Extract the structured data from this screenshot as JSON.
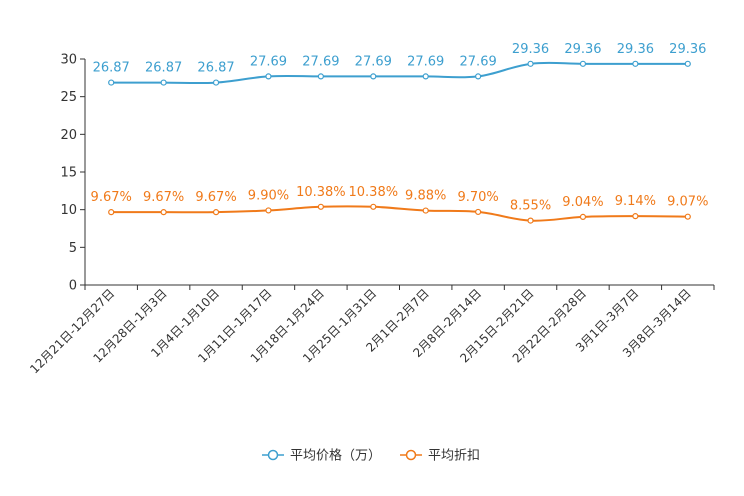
{
  "chart_data": {
    "type": "line",
    "categories": [
      "12月21日-12月27日",
      "12月28日-1月3日",
      "1月4日-1月10日",
      "1月11日-1月17日",
      "1月18日-1月24日",
      "1月25日-1月31日",
      "2月1日-2月7日",
      "2月8日-2月14日",
      "2月15日-2月21日",
      "2月22日-2月28日",
      "3月1日-3月7日",
      "3月8日-3月14日"
    ],
    "ylim": [
      0,
      30
    ],
    "yticks": [
      0,
      5,
      10,
      15,
      20,
      25,
      30
    ],
    "ytick_labels": [
      "0",
      "5",
      "10",
      "15",
      "20",
      "25",
      "30"
    ],
    "series": [
      {
        "name": "平均价格（万）",
        "color": "#3d9fcf",
        "values": [
          26.87,
          26.87,
          26.87,
          27.69,
          27.69,
          27.69,
          27.69,
          27.69,
          29.36,
          29.36,
          29.36,
          29.36
        ],
        "labels": [
          "26.87",
          "26.87",
          "26.87",
          "27.69",
          "27.69",
          "27.69",
          "27.69",
          "27.69",
          "29.36",
          "29.36",
          "29.36",
          "29.36"
        ]
      },
      {
        "name": "平均折扣",
        "color": "#f07a1a",
        "values": [
          9.67,
          9.67,
          9.67,
          9.9,
          10.38,
          10.38,
          9.88,
          9.7,
          8.55,
          9.04,
          9.14,
          9.07
        ],
        "labels": [
          "9.67%",
          "9.67%",
          "9.67%",
          "9.90%",
          "10.38%",
          "10.38%",
          "9.88%",
          "9.70%",
          "8.55%",
          "9.04%",
          "9.14%",
          "9.07%"
        ]
      }
    ],
    "legend_position": "bottom-center",
    "grid": false
  }
}
